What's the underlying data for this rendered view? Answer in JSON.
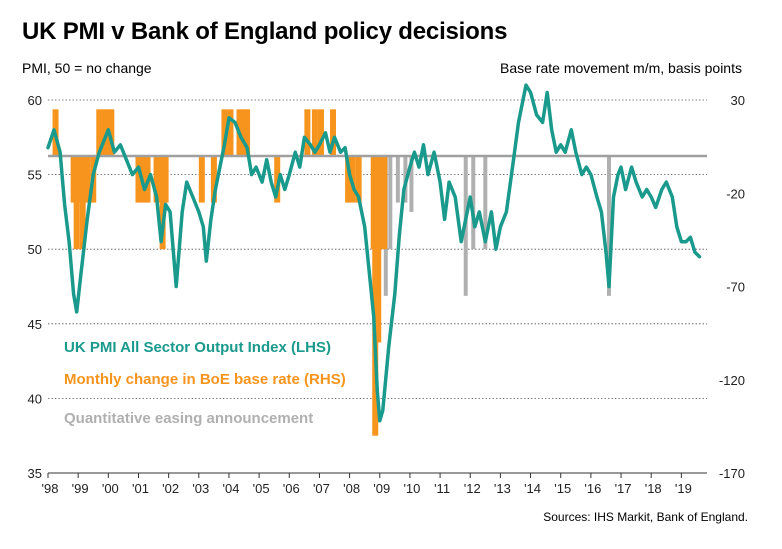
{
  "chart_data": {
    "type": "line",
    "title": "UK PMI v Bank of England policy decisions",
    "left_axis_label": "PMI, 50 = no change",
    "right_axis_label": "Base rate movement m/m, basis points",
    "source": "Sources: IHS Markit, Bank of England.",
    "left_ylim": [
      35,
      60
    ],
    "left_ticks": [
      "60",
      "55",
      "50",
      "45",
      "40",
      "35"
    ],
    "right_ylim": [
      -170,
      30
    ],
    "right_ticks": [
      "30",
      "-20",
      "-70",
      "-120",
      "-170"
    ],
    "x_ticks": [
      "'98",
      "'99",
      "'00",
      "'01",
      "'02",
      "'03",
      "'04",
      "'05",
      "'06",
      "'07",
      "'08",
      "'09",
      "'10",
      "'11",
      "'12",
      "'13",
      "'14",
      "'15",
      "'16",
      "'17",
      "'18",
      "'19"
    ],
    "grid": "horizontal dotted",
    "colors": {
      "pmi": "#1a9a8c",
      "boe": "#f7941d",
      "qe": "#b0b0b0",
      "zero_line": "#a0a0a0"
    },
    "series": [
      {
        "name": "UK PMI All Sector Output Index (LHS)",
        "axis": "left",
        "kind": "line",
        "points": [
          [
            1998.0,
            56.8
          ],
          [
            1998.2,
            58.0
          ],
          [
            1998.4,
            56.5
          ],
          [
            1998.55,
            53.0
          ],
          [
            1998.7,
            50.5
          ],
          [
            1998.85,
            47.0
          ],
          [
            1998.95,
            45.8
          ],
          [
            1999.1,
            48.5
          ],
          [
            1999.3,
            52.0
          ],
          [
            1999.5,
            55.0
          ],
          [
            1999.7,
            56.5
          ],
          [
            1999.9,
            57.5
          ],
          [
            2000.0,
            58.0
          ],
          [
            2000.2,
            56.5
          ],
          [
            2000.4,
            57.0
          ],
          [
            2000.6,
            56.0
          ],
          [
            2000.8,
            55.0
          ],
          [
            2001.0,
            55.5
          ],
          [
            2001.2,
            54.0
          ],
          [
            2001.4,
            55.0
          ],
          [
            2001.6,
            53.5
          ],
          [
            2001.75,
            50.5
          ],
          [
            2001.9,
            53.0
          ],
          [
            2002.05,
            52.5
          ],
          [
            2002.25,
            47.5
          ],
          [
            2002.45,
            52.5
          ],
          [
            2002.6,
            54.5
          ],
          [
            2002.8,
            53.5
          ],
          [
            2003.0,
            52.5
          ],
          [
            2003.15,
            51.5
          ],
          [
            2003.25,
            49.2
          ],
          [
            2003.4,
            52.0
          ],
          [
            2003.55,
            54.0
          ],
          [
            2003.7,
            55.5
          ],
          [
            2003.85,
            57.0
          ],
          [
            2004.0,
            58.8
          ],
          [
            2004.2,
            58.5
          ],
          [
            2004.4,
            57.5
          ],
          [
            2004.6,
            56.8
          ],
          [
            2004.75,
            55.0
          ],
          [
            2004.9,
            55.5
          ],
          [
            2005.1,
            54.5
          ],
          [
            2005.25,
            56.0
          ],
          [
            2005.4,
            54.5
          ],
          [
            2005.55,
            53.5
          ],
          [
            2005.7,
            55.0
          ],
          [
            2005.85,
            54.0
          ],
          [
            2006.0,
            55.0
          ],
          [
            2006.2,
            56.5
          ],
          [
            2006.35,
            55.5
          ],
          [
            2006.5,
            57.5
          ],
          [
            2006.7,
            57.0
          ],
          [
            2006.85,
            56.5
          ],
          [
            2007.0,
            57.0
          ],
          [
            2007.2,
            57.8
          ],
          [
            2007.35,
            56.5
          ],
          [
            2007.5,
            57.5
          ],
          [
            2007.7,
            56.5
          ],
          [
            2007.85,
            56.8
          ],
          [
            2008.0,
            55.0
          ],
          [
            2008.15,
            54.0
          ],
          [
            2008.3,
            53.5
          ],
          [
            2008.5,
            51.5
          ],
          [
            2008.65,
            48.5
          ],
          [
            2008.8,
            45.5
          ],
          [
            2008.92,
            40.5
          ],
          [
            2009.0,
            38.5
          ],
          [
            2009.1,
            39.2
          ],
          [
            2009.3,
            43.5
          ],
          [
            2009.5,
            47.0
          ],
          [
            2009.65,
            51.0
          ],
          [
            2009.8,
            54.0
          ],
          [
            2010.0,
            55.5
          ],
          [
            2010.15,
            56.5
          ],
          [
            2010.3,
            55.5
          ],
          [
            2010.45,
            57.0
          ],
          [
            2010.6,
            55.0
          ],
          [
            2010.8,
            56.5
          ],
          [
            2011.0,
            54.5
          ],
          [
            2011.15,
            52.0
          ],
          [
            2011.3,
            54.5
          ],
          [
            2011.5,
            53.5
          ],
          [
            2011.7,
            50.5
          ],
          [
            2011.85,
            52.0
          ],
          [
            2012.0,
            53.5
          ],
          [
            2012.15,
            51.5
          ],
          [
            2012.3,
            52.5
          ],
          [
            2012.5,
            50.5
          ],
          [
            2012.7,
            52.5
          ],
          [
            2012.85,
            50.0
          ],
          [
            2013.0,
            51.5
          ],
          [
            2013.2,
            52.5
          ],
          [
            2013.4,
            55.5
          ],
          [
            2013.6,
            58.5
          ],
          [
            2013.75,
            60.0
          ],
          [
            2013.85,
            61.0
          ],
          [
            2014.0,
            60.5
          ],
          [
            2014.2,
            59.0
          ],
          [
            2014.4,
            58.5
          ],
          [
            2014.55,
            60.5
          ],
          [
            2014.7,
            58.0
          ],
          [
            2014.85,
            56.5
          ],
          [
            2015.0,
            57.0
          ],
          [
            2015.15,
            56.5
          ],
          [
            2015.35,
            58.0
          ],
          [
            2015.5,
            56.5
          ],
          [
            2015.7,
            55.0
          ],
          [
            2015.85,
            55.5
          ],
          [
            2016.0,
            55.0
          ],
          [
            2016.2,
            53.5
          ],
          [
            2016.35,
            52.5
          ],
          [
            2016.5,
            49.8
          ],
          [
            2016.6,
            47.5
          ],
          [
            2016.75,
            53.5
          ],
          [
            2016.9,
            55.0
          ],
          [
            2017.0,
            55.5
          ],
          [
            2017.15,
            54.0
          ],
          [
            2017.35,
            55.5
          ],
          [
            2017.5,
            54.5
          ],
          [
            2017.7,
            53.5
          ],
          [
            2017.85,
            54.0
          ],
          [
            2018.0,
            53.5
          ],
          [
            2018.15,
            52.8
          ],
          [
            2018.35,
            54.0
          ],
          [
            2018.5,
            54.5
          ],
          [
            2018.7,
            53.5
          ],
          [
            2018.85,
            51.5
          ],
          [
            2019.0,
            50.5
          ],
          [
            2019.15,
            50.5
          ],
          [
            2019.3,
            50.8
          ],
          [
            2019.45,
            49.8
          ],
          [
            2019.6,
            49.5
          ]
        ]
      },
      {
        "name": "Monthly change in BoE base rate (RHS)",
        "axis": "right",
        "kind": "bar",
        "values": [
          [
            1998.25,
            25
          ],
          [
            1998.85,
            -25
          ],
          [
            1998.95,
            -50
          ],
          [
            1999.05,
            -25
          ],
          [
            1999.15,
            -50
          ],
          [
            1999.3,
            -25
          ],
          [
            1999.5,
            -25
          ],
          [
            1999.7,
            25
          ],
          [
            1999.85,
            25
          ],
          [
            2000.0,
            25
          ],
          [
            2000.1,
            25
          ],
          [
            2001.0,
            -25
          ],
          [
            2001.15,
            -25
          ],
          [
            2001.3,
            -25
          ],
          [
            2001.6,
            -25
          ],
          [
            2001.7,
            -25
          ],
          [
            2001.8,
            -50
          ],
          [
            2001.9,
            -25
          ],
          [
            2003.1,
            -25
          ],
          [
            2003.5,
            -25
          ],
          [
            2003.85,
            25
          ],
          [
            2004.05,
            25
          ],
          [
            2004.35,
            25
          ],
          [
            2004.5,
            25
          ],
          [
            2004.6,
            25
          ],
          [
            2005.6,
            -25
          ],
          [
            2006.6,
            25
          ],
          [
            2006.85,
            25
          ],
          [
            2007.05,
            25
          ],
          [
            2007.45,
            25
          ],
          [
            2007.95,
            -25
          ],
          [
            2008.1,
            -25
          ],
          [
            2008.3,
            -25
          ],
          [
            2008.8,
            -50
          ],
          [
            2008.85,
            -150
          ],
          [
            2008.95,
            -100
          ],
          [
            2009.05,
            -50
          ],
          [
            2009.15,
            -50
          ]
        ]
      },
      {
        "name": "Quantitative easing announcement",
        "axis": "right",
        "kind": "bar",
        "values": [
          [
            2009.2,
            -75
          ],
          [
            2009.35,
            -50
          ],
          [
            2009.6,
            -25
          ],
          [
            2009.85,
            -25
          ],
          [
            2010.05,
            -30
          ],
          [
            2011.85,
            -75
          ],
          [
            2012.1,
            -50
          ],
          [
            2012.5,
            -50
          ],
          [
            2016.6,
            -75
          ]
        ]
      }
    ]
  }
}
